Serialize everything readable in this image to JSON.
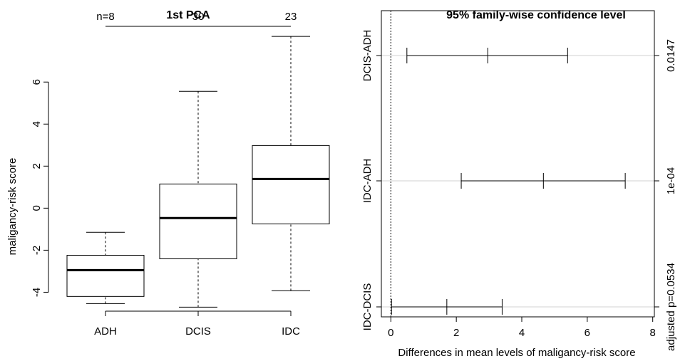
{
  "chart_data": [
    {
      "type": "box",
      "title": "1st PCA",
      "ylabel": "maligancy-risk score",
      "categories": [
        "ADH",
        "DCIS",
        "IDC"
      ],
      "n": [
        {
          "value": 8,
          "label": "n=8"
        },
        30,
        23
      ],
      "boxes": [
        {
          "low": -4.54,
          "q1": -4.2,
          "median": -2.95,
          "q3": -2.24,
          "high": -1.15
        },
        {
          "low": -4.71,
          "q1": -2.41,
          "median": -0.47,
          "q3": 1.15,
          "high": 5.56
        },
        {
          "low": -3.93,
          "q1": -0.75,
          "median": 1.39,
          "q3": 2.98,
          "high": 8.17
        }
      ],
      "ylim": [
        -4.9,
        8.65
      ],
      "yticks": [
        -4,
        -2,
        0,
        2,
        4,
        6
      ]
    },
    {
      "type": "interval",
      "title": "95% family-wise confidence level",
      "xlabel": "Differences in mean levels of maligancy-risk score",
      "categories": [
        "DCIS-ADH",
        "IDC-ADH",
        "IDC-DCIS"
      ],
      "lower": [
        0.49,
        2.15,
        0.02
      ],
      "estimate": [
        2.96,
        4.66,
        1.71
      ],
      "upper": [
        5.4,
        7.16,
        3.4
      ],
      "p_values": [
        0.0147,
        {
          "value": 0.0001,
          "label": "1e-04"
        },
        {
          "value": 0.0534,
          "label": "adjusted p=0.0534"
        }
      ],
      "reference_line": 0,
      "xlim": [
        -0.29,
        8.05
      ],
      "xticks": [
        0,
        2,
        4,
        6,
        8
      ],
      "grid": true
    }
  ]
}
